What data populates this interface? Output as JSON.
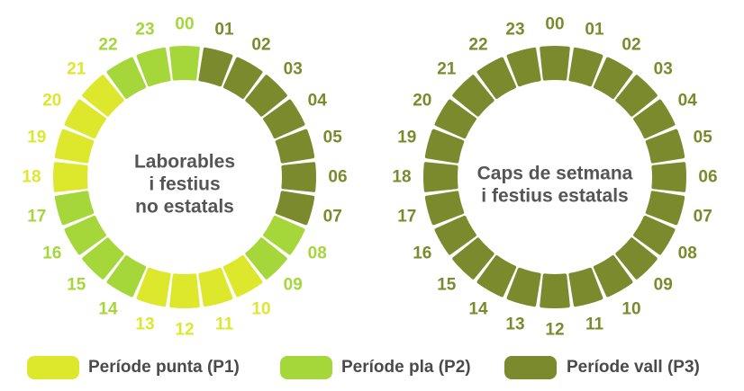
{
  "colors": {
    "P1": "#dde82d",
    "P2": "#a5d63a",
    "P3": "#7b8a2c",
    "label_text": "#555555"
  },
  "rings": [
    {
      "id": "workdays",
      "title_lines": [
        "Laborables",
        "i festius",
        "no estatals"
      ],
      "hours": [
        {
          "label": "00",
          "period": "P2"
        },
        {
          "label": "01",
          "period": "P3"
        },
        {
          "label": "02",
          "period": "P3"
        },
        {
          "label": "03",
          "period": "P3"
        },
        {
          "label": "04",
          "period": "P3"
        },
        {
          "label": "05",
          "period": "P3"
        },
        {
          "label": "06",
          "period": "P3"
        },
        {
          "label": "07",
          "period": "P3"
        },
        {
          "label": "08",
          "period": "P2"
        },
        {
          "label": "09",
          "period": "P2"
        },
        {
          "label": "10",
          "period": "P1"
        },
        {
          "label": "11",
          "period": "P1"
        },
        {
          "label": "12",
          "period": "P1"
        },
        {
          "label": "13",
          "period": "P1"
        },
        {
          "label": "14",
          "period": "P2"
        },
        {
          "label": "15",
          "period": "P2"
        },
        {
          "label": "16",
          "period": "P2"
        },
        {
          "label": "17",
          "period": "P2"
        },
        {
          "label": "18",
          "period": "P1"
        },
        {
          "label": "19",
          "period": "P1"
        },
        {
          "label": "20",
          "period": "P1"
        },
        {
          "label": "21",
          "period": "P1"
        },
        {
          "label": "22",
          "period": "P2"
        },
        {
          "label": "23",
          "period": "P2"
        }
      ]
    },
    {
      "id": "weekends",
      "title_lines": [
        "Caps de setmana",
        "i festius estatals"
      ],
      "hours": [
        {
          "label": "00",
          "period": "P3"
        },
        {
          "label": "01",
          "period": "P3"
        },
        {
          "label": "02",
          "period": "P3"
        },
        {
          "label": "03",
          "period": "P3"
        },
        {
          "label": "04",
          "period": "P3"
        },
        {
          "label": "05",
          "period": "P3"
        },
        {
          "label": "06",
          "period": "P3"
        },
        {
          "label": "07",
          "period": "P3"
        },
        {
          "label": "08",
          "period": "P3"
        },
        {
          "label": "09",
          "period": "P3"
        },
        {
          "label": "10",
          "period": "P3"
        },
        {
          "label": "11",
          "period": "P3"
        },
        {
          "label": "12",
          "period": "P3"
        },
        {
          "label": "13",
          "period": "P3"
        },
        {
          "label": "14",
          "period": "P3"
        },
        {
          "label": "15",
          "period": "P3"
        },
        {
          "label": "16",
          "period": "P3"
        },
        {
          "label": "17",
          "period": "P3"
        },
        {
          "label": "18",
          "period": "P3"
        },
        {
          "label": "19",
          "period": "P3"
        },
        {
          "label": "20",
          "period": "P3"
        },
        {
          "label": "21",
          "period": "P3"
        },
        {
          "label": "22",
          "period": "P3"
        },
        {
          "label": "23",
          "period": "P3"
        }
      ]
    }
  ],
  "legend": [
    {
      "period": "P1",
      "label": "Període punta (P1)"
    },
    {
      "period": "P2",
      "label": "Període pla (P2)"
    },
    {
      "period": "P3",
      "label": "Període vall (P3)"
    }
  ]
}
